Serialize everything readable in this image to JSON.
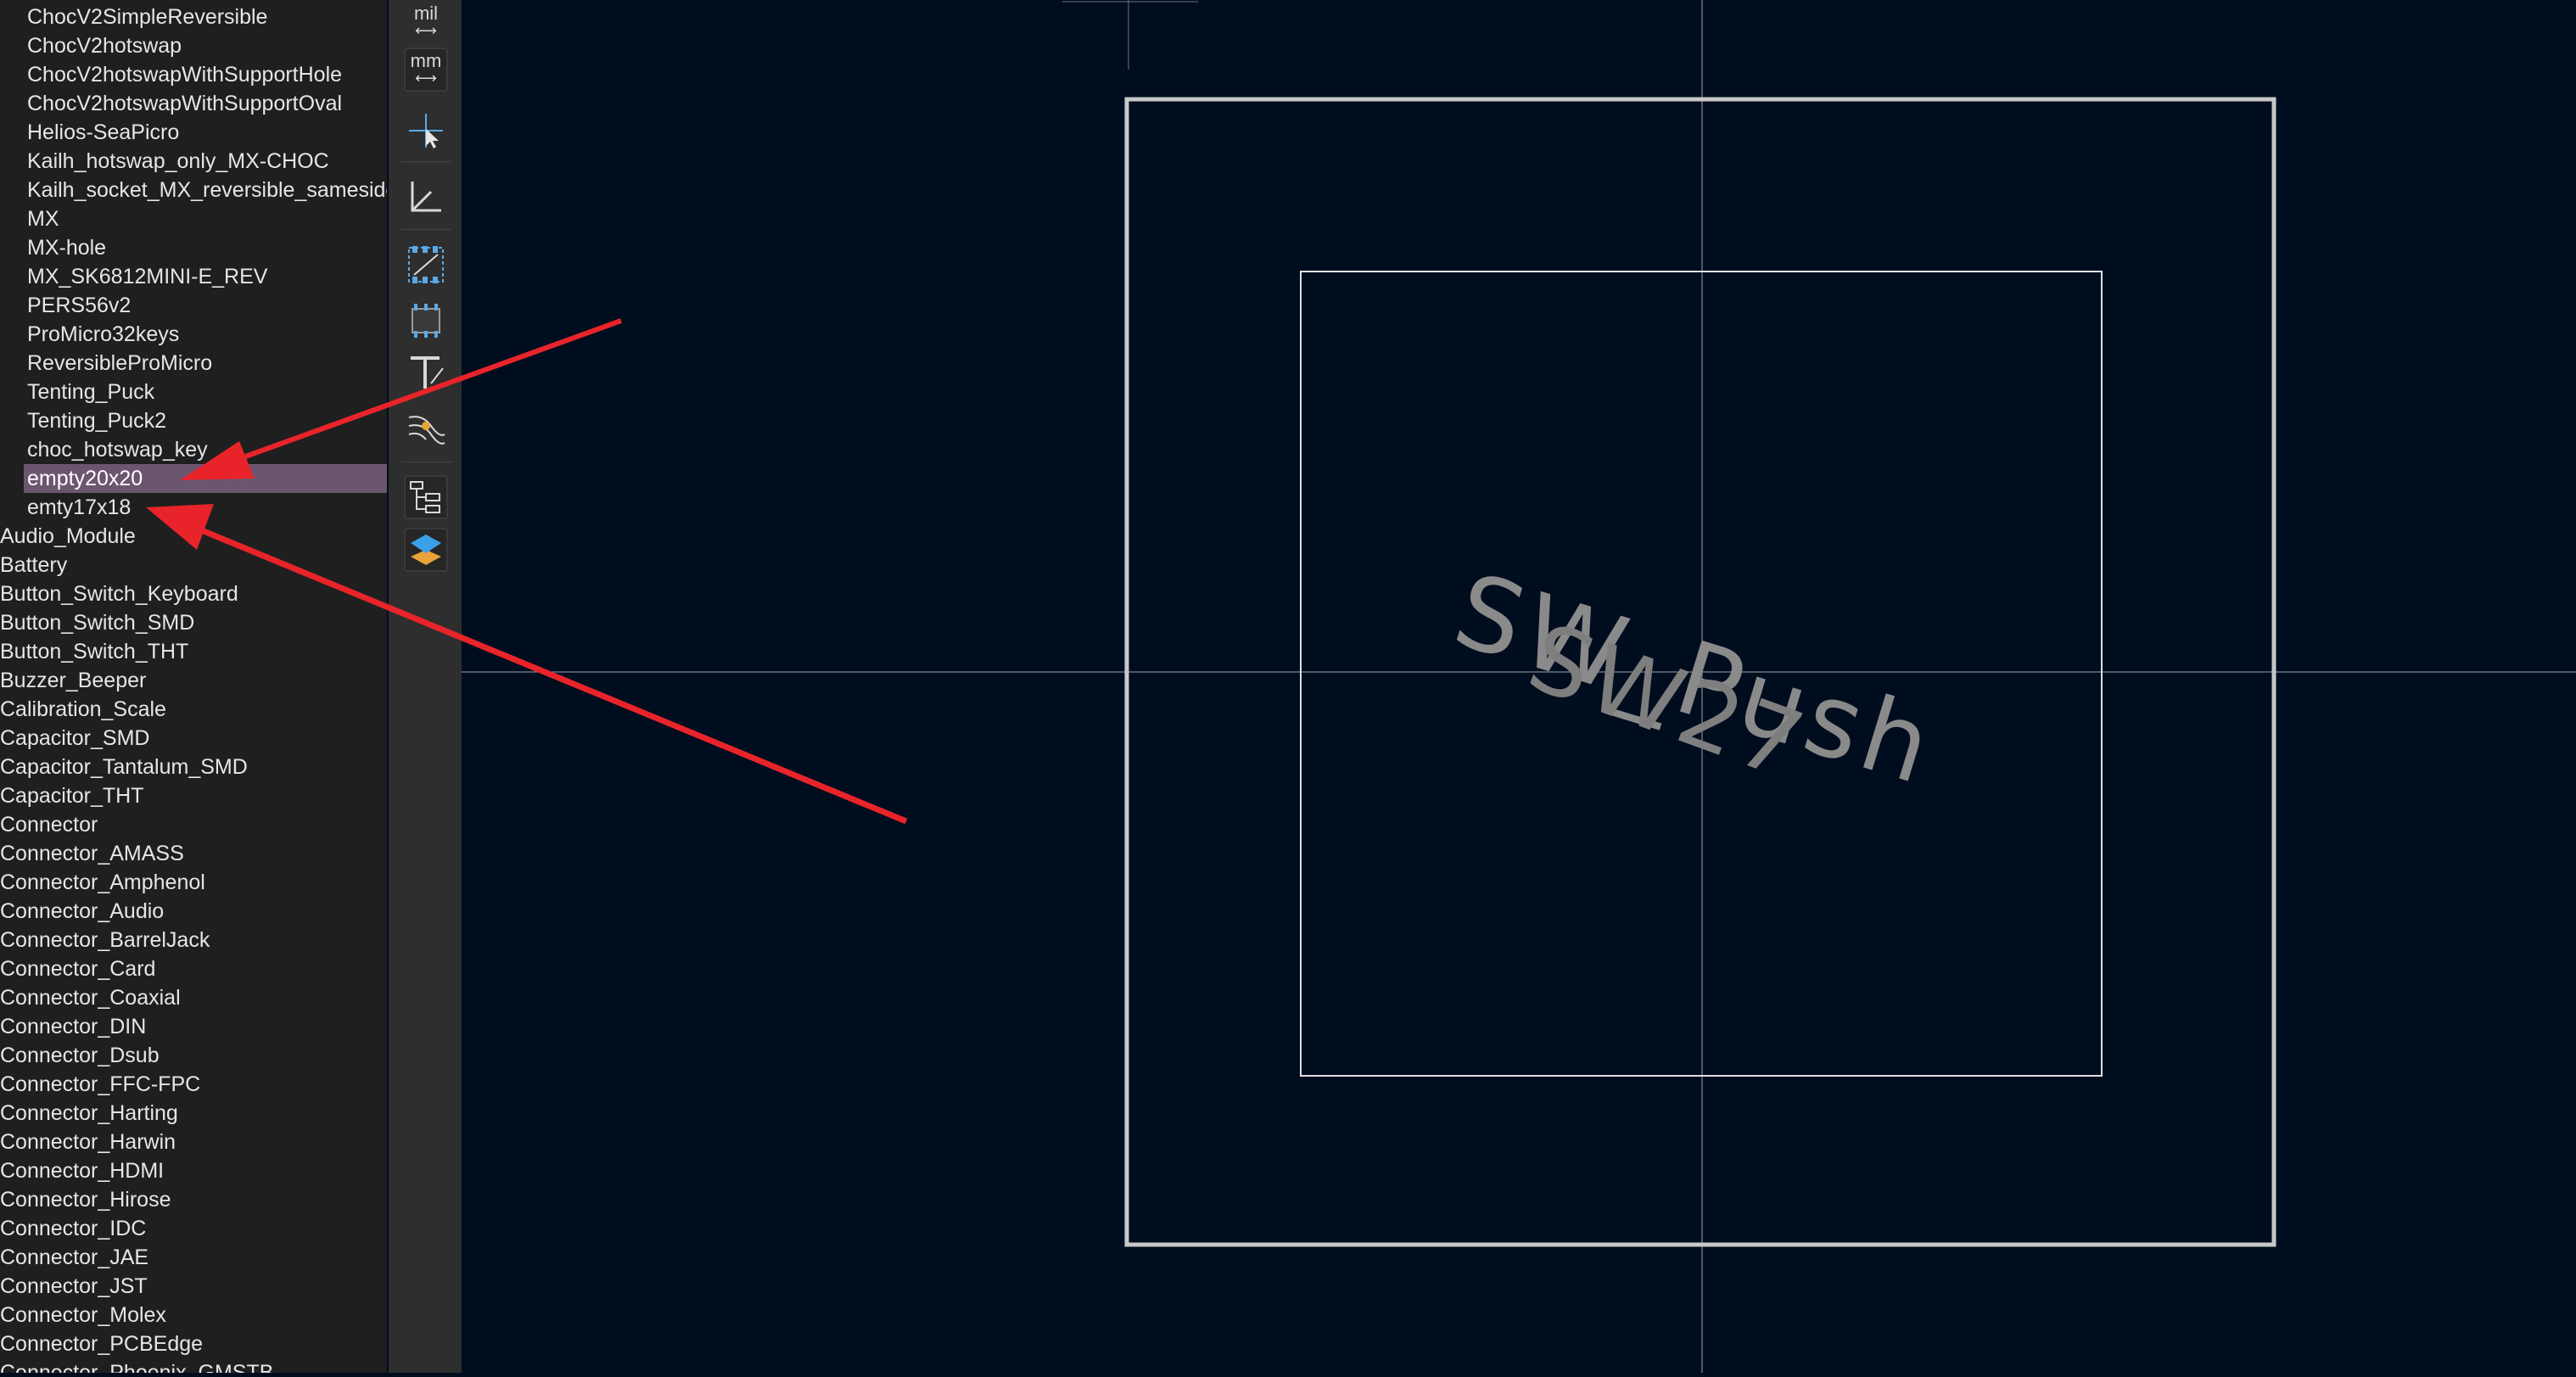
{
  "library": {
    "items": [
      {
        "label": "ChocV2SimpleReversible",
        "child": true
      },
      {
        "label": "ChocV2hotswap",
        "child": true
      },
      {
        "label": "ChocV2hotswapWithSupportHole",
        "child": true
      },
      {
        "label": "ChocV2hotswapWithSupportOval",
        "child": true
      },
      {
        "label": "Helios-SeaPicro",
        "child": true
      },
      {
        "label": "Kailh_hotswap_only_MX-CHOC",
        "child": true
      },
      {
        "label": "Kailh_socket_MX_reversible_samesides",
        "child": true
      },
      {
        "label": "MX",
        "child": true
      },
      {
        "label": "MX-hole",
        "child": true
      },
      {
        "label": "MX_SK6812MINI-E_REV",
        "child": true
      },
      {
        "label": "PERS56v2",
        "child": true
      },
      {
        "label": "ProMicro32keys",
        "child": true
      },
      {
        "label": "ReversibleProMicro",
        "child": true
      },
      {
        "label": "Tenting_Puck",
        "child": true
      },
      {
        "label": "Tenting_Puck2",
        "child": true
      },
      {
        "label": "choc_hotswap_key",
        "child": true
      },
      {
        "label": "empty20x20",
        "child": true,
        "selected": true
      },
      {
        "label": "emty17x18",
        "child": true
      },
      {
        "label": "Audio_Module",
        "child": false
      },
      {
        "label": "Battery",
        "child": false
      },
      {
        "label": "Button_Switch_Keyboard",
        "child": false
      },
      {
        "label": "Button_Switch_SMD",
        "child": false
      },
      {
        "label": "Button_Switch_THT",
        "child": false
      },
      {
        "label": "Buzzer_Beeper",
        "child": false
      },
      {
        "label": "Calibration_Scale",
        "child": false
      },
      {
        "label": "Capacitor_SMD",
        "child": false
      },
      {
        "label": "Capacitor_Tantalum_SMD",
        "child": false
      },
      {
        "label": "Capacitor_THT",
        "child": false
      },
      {
        "label": "Connector",
        "child": false
      },
      {
        "label": "Connector_AMASS",
        "child": false
      },
      {
        "label": "Connector_Amphenol",
        "child": false
      },
      {
        "label": "Connector_Audio",
        "child": false
      },
      {
        "label": "Connector_BarrelJack",
        "child": false
      },
      {
        "label": "Connector_Card",
        "child": false
      },
      {
        "label": "Connector_Coaxial",
        "child": false
      },
      {
        "label": "Connector_DIN",
        "child": false
      },
      {
        "label": "Connector_Dsub",
        "child": false
      },
      {
        "label": "Connector_FFC-FPC",
        "child": false
      },
      {
        "label": "Connector_Harting",
        "child": false
      },
      {
        "label": "Connector_Harwin",
        "child": false
      },
      {
        "label": "Connector_HDMI",
        "child": false
      },
      {
        "label": "Connector_Hirose",
        "child": false
      },
      {
        "label": "Connector_IDC",
        "child": false
      },
      {
        "label": "Connector_JAE",
        "child": false
      },
      {
        "label": "Connector_JST",
        "child": false
      },
      {
        "label": "Connector_Molex",
        "child": false
      },
      {
        "label": "Connector_PCBEdge",
        "child": false
      },
      {
        "label": "Connector_Phoenix_GMSTB",
        "child": false
      }
    ]
  },
  "toolbar": {
    "mil_label": "mil",
    "mm_label": "mm"
  },
  "canvas": {
    "text_primary": "SW_Push",
    "text_secondary": "SW27",
    "colors": {
      "background": "#000d1f",
      "outline": "#c8c8c8",
      "crosshair": "#9aa4b0",
      "text": "#8a8a8a",
      "arrow": "#e8242a"
    }
  }
}
